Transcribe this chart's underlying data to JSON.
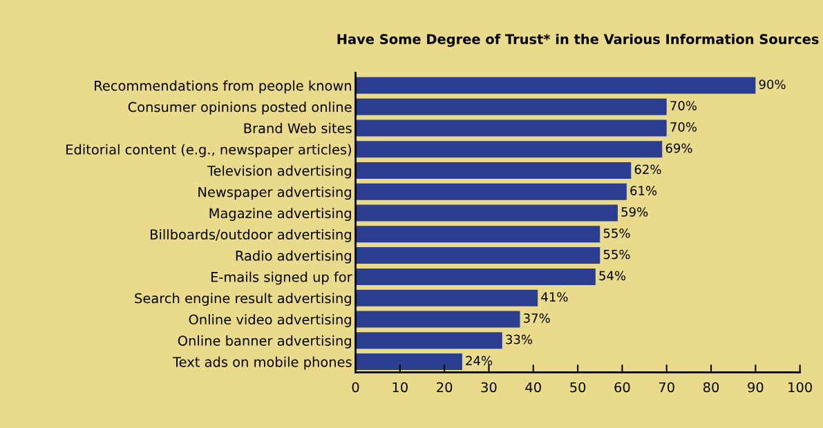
{
  "chart_data": {
    "type": "bar",
    "orientation": "horizontal",
    "title": "Have Some Degree of Trust* in the Various Information Sources",
    "categories": [
      "Recommendations from people known",
      "Consumer opinions posted online",
      "Brand Web sites",
      "Editorial content (e.g., newspaper articles)",
      "Television advertising",
      "Newspaper advertising",
      "Magazine advertising",
      "Billboards/outdoor advertising",
      "Radio advertising",
      "E-mails signed up for",
      "Search engine result advertising",
      "Online video advertising",
      "Online banner advertising",
      "Text ads on mobile phones"
    ],
    "values": [
      90,
      70,
      70,
      69,
      62,
      61,
      59,
      55,
      55,
      54,
      41,
      37,
      33,
      24
    ],
    "value_labels": [
      "90%",
      "70%",
      "70%",
      "69%",
      "62%",
      "61%",
      "59%",
      "55%",
      "55%",
      "54%",
      "41%",
      "37%",
      "33%",
      "24%"
    ],
    "color": "#2b3d8f",
    "xlim": [
      0,
      100
    ],
    "xticks": [
      0,
      10,
      20,
      30,
      40,
      50,
      60,
      70,
      80,
      90,
      100
    ],
    "grid": false,
    "legend": false
  }
}
